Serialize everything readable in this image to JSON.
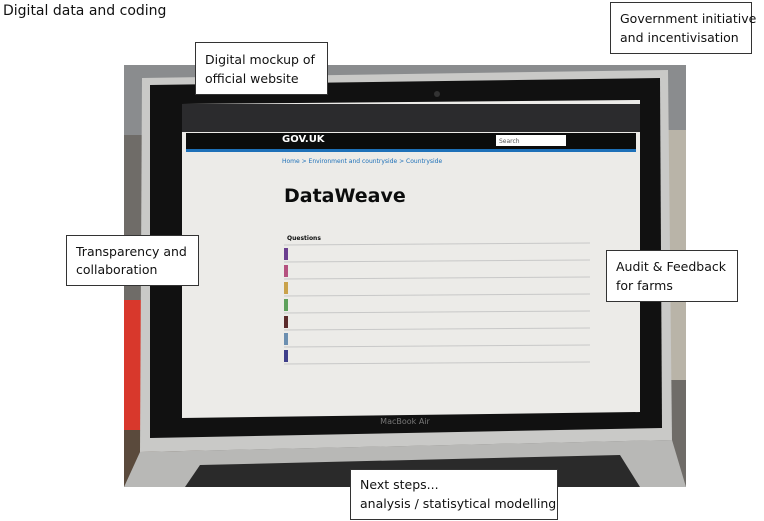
{
  "title": "Digital data and coding",
  "callouts": [
    {
      "lines": [
        "Government initiative",
        "and incentivisation"
      ]
    },
    {
      "lines": [
        "Digital mockup of",
        "official website"
      ]
    },
    {
      "lines": [
        "Transparency and",
        "collaboration"
      ]
    },
    {
      "lines": [
        "Audit & Feedback",
        "for farms"
      ]
    },
    {
      "lines": [
        "Next steps...",
        "analysis / statisytical modelling"
      ]
    }
  ],
  "screen": {
    "site": "GOV.UK",
    "search": "Search",
    "breadcrumb": "Home  >  Environment and countryside  >  Countryside",
    "heading": "DataWeave",
    "table_header": "Questions",
    "laptop": "MacBook Air"
  }
}
